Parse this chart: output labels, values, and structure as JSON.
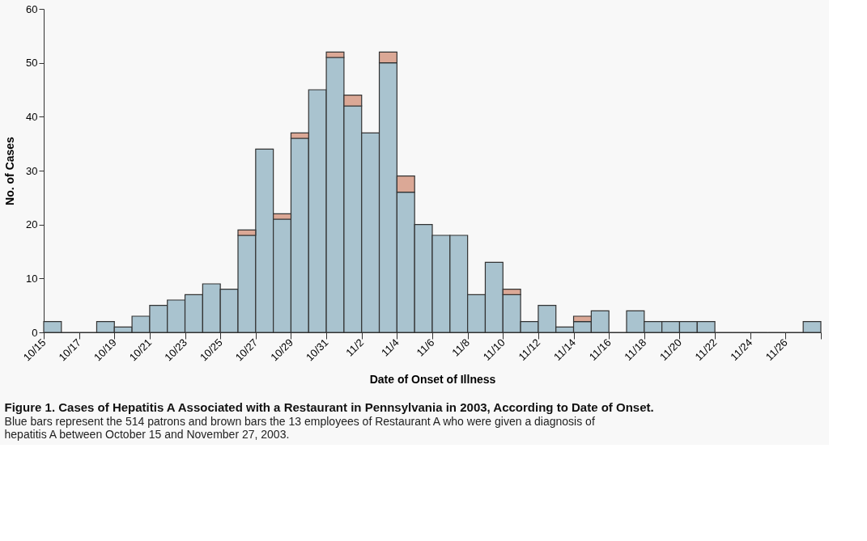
{
  "chart_data": {
    "type": "bar",
    "stacked": true,
    "title": "Figure 1. Cases of Hepatitis A Associated with a Restaurant in Pennsylvania in 2003, According to Date of Onset.",
    "subtitle": "Blue bars represent the 514 patrons and brown bars the 13 employees of Restaurant A who were given a diagnosis of hepatitis A between October 15 and November 27, 2003.",
    "xlabel": "Date of Onset of Illness",
    "ylabel": "No. of Cases",
    "x": [
      "2003-10-15T12:00",
      "2003-10-16T12:00",
      "2003-10-17T12:00",
      "2003-10-18T12:00",
      "2003-10-19T12:00",
      "2003-10-20T12:00",
      "2003-10-21T12:00",
      "2003-10-22T12:00",
      "2003-10-23T12:00",
      "2003-10-24T12:00",
      "2003-10-25T12:00",
      "2003-10-26T12:00",
      "2003-10-27T12:00",
      "2003-10-28T12:00",
      "2003-10-29T12:00",
      "2003-10-30T12:00",
      "2003-10-31T12:00",
      "2003-11-01T12:00",
      "2003-11-02T12:00",
      "2003-11-03T12:00",
      "2003-11-04T12:00",
      "2003-11-05T12:00",
      "2003-11-06T12:00",
      "2003-11-07T12:00",
      "2003-11-08T12:00",
      "2003-11-09T12:00",
      "2003-11-10T12:00",
      "2003-11-11T12:00",
      "2003-11-12T12:00",
      "2003-11-13T12:00",
      "2003-11-14T12:00",
      "2003-11-15T12:00",
      "2003-11-16T12:00",
      "2003-11-17T12:00",
      "2003-11-18T12:00",
      "2003-11-19T12:00",
      "2003-11-20T12:00",
      "2003-11-21T12:00",
      "2003-11-22T12:00",
      "2003-11-23T12:00",
      "2003-11-24T12:00",
      "2003-11-25T12:00",
      "2003-11-26T12:00",
      "2003-11-27T12:00"
    ],
    "series": [
      {
        "color": "#a9c3cf",
        "values": [
          2,
          0,
          0,
          2,
          1,
          3,
          5,
          6,
          7,
          9,
          8,
          18,
          34,
          21,
          36,
          45,
          51,
          42,
          37,
          50,
          26,
          20,
          18,
          18,
          7,
          13,
          7,
          2,
          5,
          1,
          2,
          4,
          0,
          4,
          2,
          2,
          2,
          2,
          0,
          0,
          0,
          0,
          0,
          2
        ]
      },
      {
        "color": "#dba896",
        "values": [
          null,
          null,
          null,
          null,
          null,
          null,
          null,
          null,
          null,
          null,
          null,
          1,
          null,
          1,
          1,
          null,
          1,
          2,
          null,
          2,
          3,
          null,
          null,
          null,
          null,
          null,
          1,
          null,
          null,
          null,
          1,
          null,
          null,
          null,
          null,
          null,
          null,
          null,
          null,
          null,
          null,
          null,
          null,
          null
        ]
      }
    ],
    "xlim": [
      "2003-10-15",
      "2003-11-28"
    ],
    "xticks": [
      {
        "value": "2003-10-15",
        "label": "10/15"
      },
      {
        "value": "2003-10-17",
        "label": "10/17"
      },
      {
        "value": "2003-10-19",
        "label": "10/19"
      },
      {
        "value": "2003-10-21",
        "label": "10/21"
      },
      {
        "value": "2003-10-23",
        "label": "10/23"
      },
      {
        "value": "2003-10-25",
        "label": "10/25"
      },
      {
        "value": "2003-10-27",
        "label": "10/27"
      },
      {
        "value": "2003-10-29",
        "label": "10/29"
      },
      {
        "value": "2003-10-31",
        "label": "10/31"
      },
      {
        "value": "2003-11-02",
        "label": "11/2"
      },
      {
        "value": "2003-11-04",
        "label": "11/4"
      },
      {
        "value": "2003-11-06",
        "label": "11/6"
      },
      {
        "value": "2003-11-08",
        "label": "11/8"
      },
      {
        "value": "2003-11-10",
        "label": "11/10"
      },
      {
        "value": "2003-11-12",
        "label": "11/12"
      },
      {
        "value": "2003-11-14",
        "label": "11/14"
      },
      {
        "value": "2003-11-16",
        "label": "11/16"
      },
      {
        "value": "2003-11-18",
        "label": "11/18"
      },
      {
        "value": "2003-11-20",
        "label": "11/20"
      },
      {
        "value": "2003-11-22",
        "label": "11/22"
      },
      {
        "value": "2003-11-24",
        "label": "11/24"
      },
      {
        "value": "2003-11-26",
        "label": "11/26"
      },
      {
        "value": "2003-11-28",
        "label": null
      }
    ],
    "ylim": [
      0,
      60
    ],
    "yticks": [
      0,
      10,
      20,
      30,
      40,
      50,
      60
    ],
    "grid": false,
    "legend": false
  }
}
